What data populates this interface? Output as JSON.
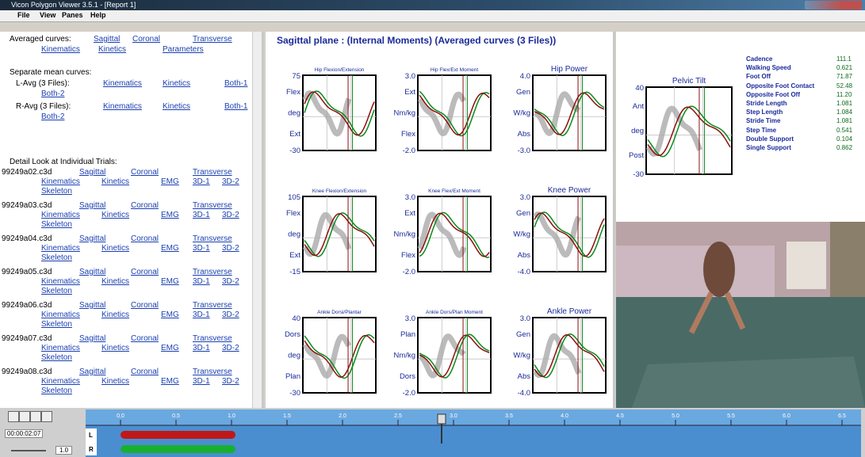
{
  "window": {
    "title": "Vicon Polygon Viewer 3.5.1 - [Report 1]",
    "menu": [
      "File",
      "View",
      "Panes",
      "Help"
    ]
  },
  "left_pane": {
    "averaged": {
      "label": "Averaged curves:",
      "links": [
        "Sagittal",
        "Coronal",
        "Transverse",
        "Kinematics",
        "Kinetics",
        "Parameters"
      ]
    },
    "separate": {
      "label": "Separate mean curves:",
      "rows": [
        {
          "name": "L-Avg (3 Files):",
          "links": [
            "Kinematics",
            "Kinetics",
            "Both-1",
            "Both-2"
          ]
        },
        {
          "name": "R-Avg (3 Files):",
          "links": [
            "Kinematics",
            "Kinetics",
            "Both-1",
            "Both-2"
          ]
        }
      ]
    },
    "detail": {
      "label": "Detail Look at Individual Trials:",
      "trials": [
        {
          "file": "99249a02.c3d",
          "links": [
            "Sagittal",
            "Coronal",
            "Transverse",
            "Kinematics",
            "Kinetics",
            "EMG",
            "3D-1",
            "3D-2",
            "Skeleton"
          ]
        },
        {
          "file": "99249a03.c3d",
          "links": [
            "Sagittal",
            "Coronal",
            "Transverse",
            "Kinematics",
            "Kinetics",
            "EMG",
            "3D-1",
            "3D-2",
            "Skeleton"
          ]
        },
        {
          "file": "99249a04.c3d",
          "links": [
            "Sagittal",
            "Coronal",
            "Transverse",
            "Kinematics",
            "Kinetics",
            "EMG",
            "3D-1",
            "3D-2",
            "Skeleton"
          ]
        },
        {
          "file": "99249a05.c3d",
          "links": [
            "Sagittal",
            "Coronal",
            "Transverse",
            "Kinematics",
            "Kinetics",
            "EMG",
            "3D-1",
            "3D-2",
            "Skeleton"
          ]
        },
        {
          "file": "99249a06.c3d",
          "links": [
            "Sagittal",
            "Coronal",
            "Transverse",
            "Kinematics",
            "Kinetics",
            "EMG",
            "3D-1",
            "3D-2",
            "Skeleton"
          ]
        },
        {
          "file": "99249a07.c3d",
          "links": [
            "Sagittal",
            "Coronal",
            "Transverse",
            "Kinematics",
            "Kinetics",
            "EMG",
            "3D-1",
            "3D-2",
            "Skeleton"
          ]
        },
        {
          "file": "99249a08.c3d",
          "links": [
            "Sagittal",
            "Coronal",
            "Transverse",
            "Kinematics",
            "Kinetics",
            "EMG",
            "3D-1",
            "3D-2",
            "Skeleton"
          ]
        }
      ]
    }
  },
  "graphs_pane": {
    "title": "Sagittal plane : (Internal Moments) (Averaged curves (3 Files))",
    "graphs": [
      {
        "title": "Hip Flexion/Extension",
        "y_top": "75",
        "y_bottom": "-30",
        "labels": [
          "Flex",
          "deg",
          "Ext"
        ]
      },
      {
        "title": "Hip Flex/Ext Moment",
        "y_top": "3.0",
        "y_bottom": "-2.0",
        "labels": [
          "Ext",
          "Nm/kg",
          "Flex"
        ]
      },
      {
        "title": "Hip Power",
        "y_top": "4.0",
        "y_bottom": "-3.0",
        "labels": [
          "Gen",
          "W/kg",
          "Abs"
        ]
      },
      {
        "title": "Knee Flexion/Extension",
        "y_top": "105",
        "y_bottom": "-15",
        "labels": [
          "Flex",
          "deg",
          "Ext"
        ]
      },
      {
        "title": "Knee Flex/Ext Moment",
        "y_top": "3.0",
        "y_bottom": "-2.0",
        "labels": [
          "Ext",
          "Nm/kg",
          "Flex"
        ]
      },
      {
        "title": "Knee Power",
        "y_top": "3.0",
        "y_bottom": "-4.0",
        "labels": [
          "Gen",
          "W/kg",
          "Abs"
        ]
      },
      {
        "title": "Ankle Dorsi/Plantar",
        "y_top": "40",
        "y_bottom": "-30",
        "labels": [
          "Dors",
          "deg",
          "Plan"
        ]
      },
      {
        "title": "Ankle Dors/Plan Moment",
        "y_top": "3.0",
        "y_bottom": "-2.0",
        "labels": [
          "Plan",
          "Nm/kg",
          "Dors"
        ]
      },
      {
        "title": "Ankle Power",
        "y_top": "3.0",
        "y_bottom": "-4.0",
        "labels": [
          "Gen",
          "W/kg",
          "Abs"
        ]
      }
    ]
  },
  "pelvic_graph": {
    "title": "Pelvic Tilt",
    "y_top": "40",
    "y_bottom": "-30",
    "labels": [
      "Ant",
      "deg",
      "Post"
    ]
  },
  "parameters": [
    {
      "name": "Cadence",
      "value": "111.1"
    },
    {
      "name": "Walking Speed",
      "value": "0.621"
    },
    {
      "name": "Foot Off",
      "value": "71.87"
    },
    {
      "name": "Opposite Foot Contact",
      "value": "52.48"
    },
    {
      "name": "Opposite Foot Off",
      "value": "11.20"
    },
    {
      "name": "Stride Length",
      "value": "1.081"
    },
    {
      "name": "Step Length",
      "value": "1.084"
    },
    {
      "name": "Stride Time",
      "value": "1.081"
    },
    {
      "name": "Step Time",
      "value": "0.541"
    },
    {
      "name": "Double Support",
      "value": "0.104"
    },
    {
      "name": "Single Support",
      "value": "0.862"
    }
  ],
  "timeline": {
    "time": "00:00:02:07",
    "speed": "1.0",
    "tracks": [
      "L",
      "R"
    ],
    "ticks": [
      "0.0",
      "0.5",
      "1.0",
      "1.5",
      "2.0",
      "2.5",
      "3.0",
      "3.5",
      "4.0",
      "4.5",
      "5.0",
      "5.5",
      "6.0",
      "6.5"
    ]
  }
}
